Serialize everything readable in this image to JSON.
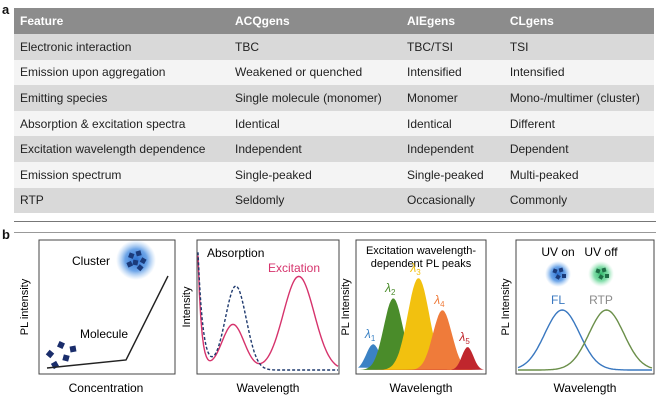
{
  "panel_a_label": "a",
  "panel_b_label": "b",
  "table": {
    "headers": [
      "Feature",
      "ACQgens",
      "AIEgens",
      "CLgens"
    ],
    "rows": [
      [
        "Electronic interaction",
        "TBC",
        "TBC/TSI",
        "TSI"
      ],
      [
        "Emission upon aggregation",
        "Weakened or quenched",
        "Intensified",
        "Intensified"
      ],
      [
        "Emitting species",
        "Single molecule (monomer)",
        "Monomer",
        "Mono-/multimer (cluster)"
      ],
      [
        "Absorption & excitation spectra",
        "Identical",
        "Identical",
        "Different"
      ],
      [
        "Excitation wavelength dependence",
        "Independent",
        "Independent",
        "Dependent"
      ],
      [
        "Emission spectrum",
        "Single-peaked",
        "Single-peaked",
        "Multi-peaked"
      ],
      [
        "RTP",
        "Seldomly",
        "Occasionally",
        "Commonly"
      ]
    ]
  },
  "plot1": {
    "ylabel": "PL intensity",
    "xlabel": "Concentration",
    "cluster_label": "Cluster",
    "molecule_label": "Molecule"
  },
  "plot2": {
    "ylabel": "Intensity",
    "xlabel": "Wavelength",
    "absorption_label": "Absorption",
    "excitation_label": "Excitation",
    "colors": {
      "absorption": "#1f3a6e",
      "excitation": "#d6336c"
    }
  },
  "plot3": {
    "ylabel": "PL Intensity",
    "xlabel": "Wavelength",
    "title_line1": "Excitation wavelength-",
    "title_line2": "dependent PL peaks",
    "peaks": [
      {
        "symbol": "λ",
        "sub": "1",
        "color": "#3b82c4",
        "center": 0.12,
        "height": 0.28,
        "width": 0.055
      },
      {
        "symbol": "λ",
        "sub": "2",
        "color": "#4a8c2a",
        "center": 0.28,
        "height": 0.78,
        "width": 0.075
      },
      {
        "symbol": "λ",
        "sub": "3",
        "color": "#f2c10f",
        "center": 0.48,
        "height": 1.0,
        "width": 0.085
      },
      {
        "symbol": "λ",
        "sub": "4",
        "color": "#ef7b3a",
        "center": 0.67,
        "height": 0.65,
        "width": 0.075
      },
      {
        "symbol": "λ",
        "sub": "5",
        "color": "#c0262d",
        "center": 0.87,
        "height": 0.25,
        "width": 0.045
      }
    ]
  },
  "plot4": {
    "ylabel": "PL Intensity",
    "xlabel": "Wavelength",
    "uv_on": "UV on",
    "uv_off": "UV off",
    "fl_label": "FL",
    "rtp_label": "RTP",
    "colors": {
      "fl": "#3a78c0",
      "rtp": "#6b8f4a"
    }
  }
}
